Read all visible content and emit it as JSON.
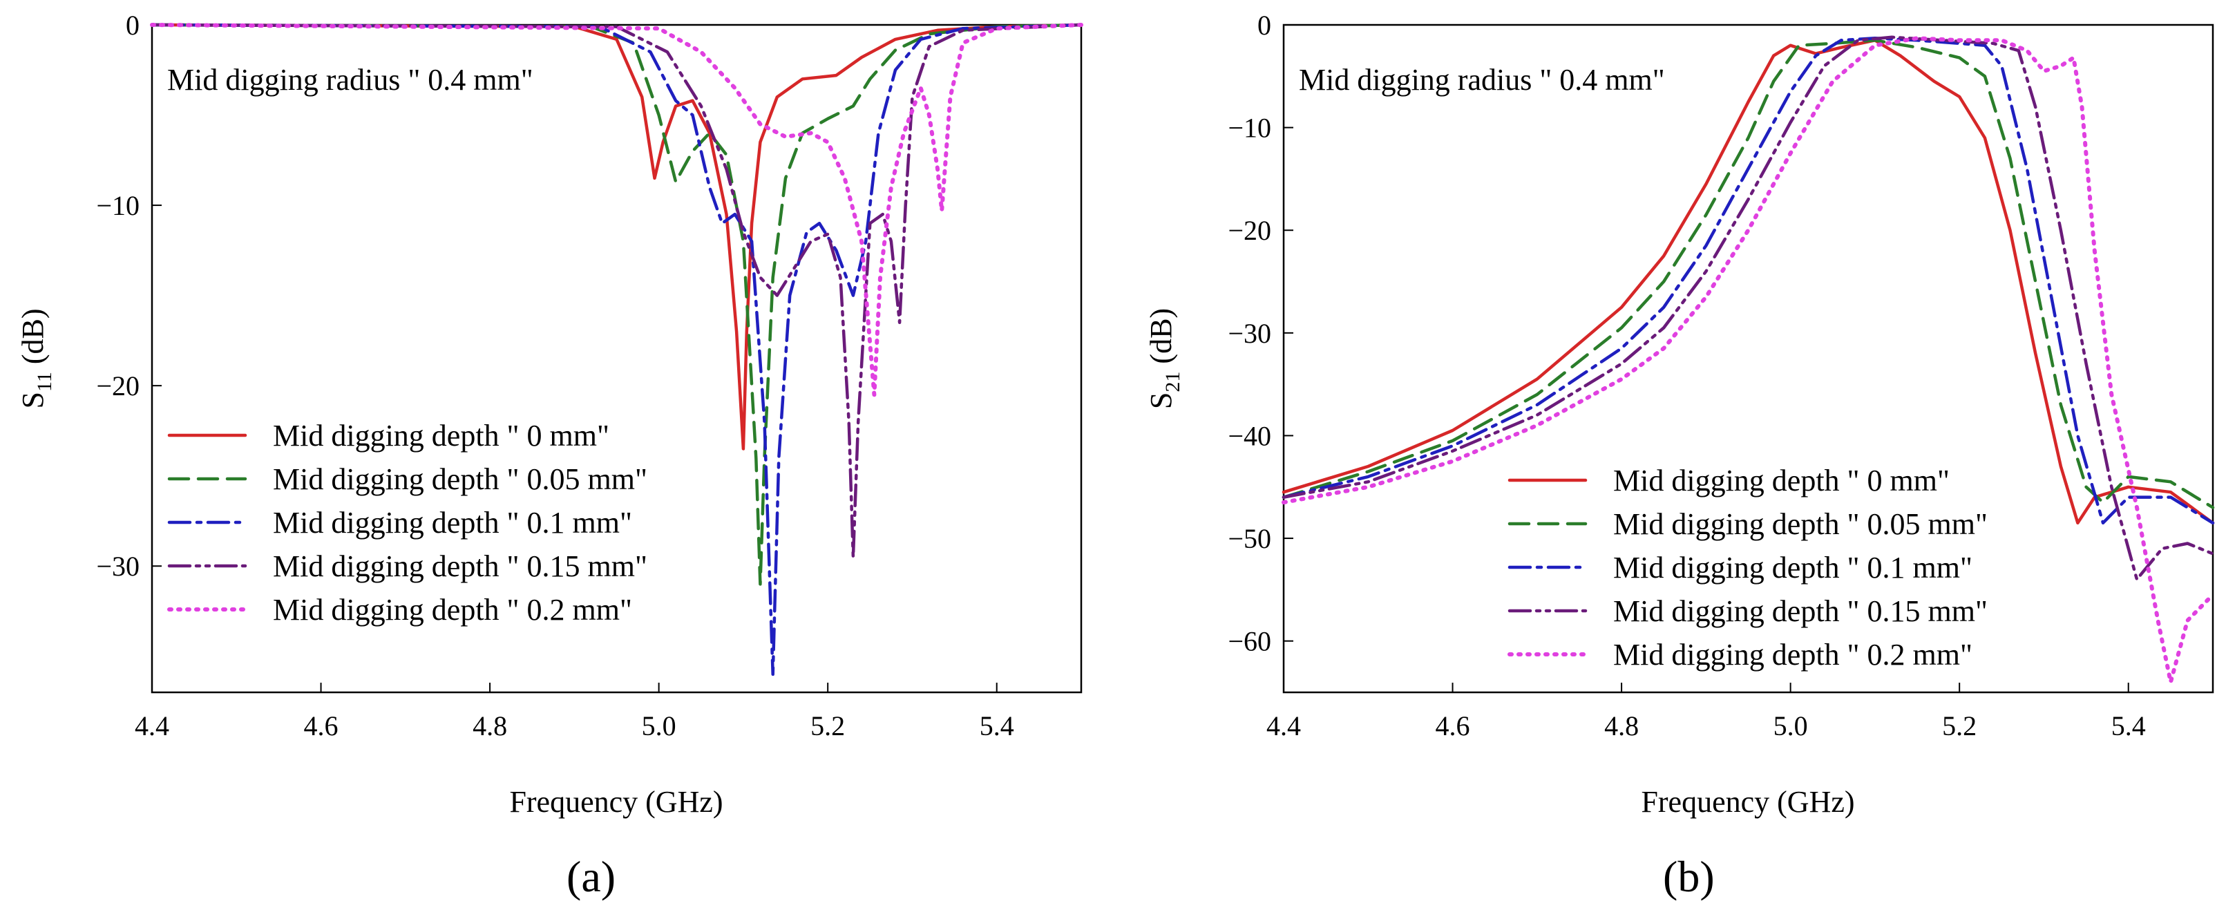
{
  "chart_data": [
    {
      "type": "line",
      "panel_label": "(a)",
      "xlabel": "Frequency (GHz)",
      "ylabel_main": "S",
      "ylabel_sub": "11",
      "ylabel_unit": " (dB)",
      "xlim": [
        4.4,
        5.5
      ],
      "ylim": [
        -37,
        0
      ],
      "xticks": [
        4.4,
        4.6,
        4.8,
        5.0,
        5.2,
        5.4
      ],
      "xtick_labels": [
        "4.4",
        "4.6",
        "4.8",
        "5.0",
        "5.2",
        "5.4"
      ],
      "yticks": [
        0,
        -10,
        -20,
        -30
      ],
      "ytick_labels": [
        "0",
        "−10",
        "−20",
        "−30"
      ],
      "annotation": "Mid digging radius \" 0.4 mm\"",
      "legend_position": "lower-left",
      "series": [
        {
          "name": "Mid digging depth \" 0 mm\"",
          "color": "#d62728",
          "dash": "solid",
          "points": [
            [
              4.4,
              0
            ],
            [
              4.9,
              -0.1
            ],
            [
              4.95,
              -0.8
            ],
            [
              4.98,
              -4
            ],
            [
              4.995,
              -8.5
            ],
            [
              5.005,
              -6.5
            ],
            [
              5.02,
              -4.5
            ],
            [
              5.04,
              -4.2
            ],
            [
              5.06,
              -6
            ],
            [
              5.08,
              -10.5
            ],
            [
              5.092,
              -17
            ],
            [
              5.1,
              -23.5
            ],
            [
              5.104,
              -17
            ],
            [
              5.11,
              -11
            ],
            [
              5.12,
              -6.5
            ],
            [
              5.14,
              -4
            ],
            [
              5.17,
              -3
            ],
            [
              5.21,
              -2.8
            ],
            [
              5.24,
              -1.8
            ],
            [
              5.28,
              -0.8
            ],
            [
              5.33,
              -0.3
            ],
            [
              5.4,
              -0.1
            ],
            [
              5.5,
              0
            ]
          ]
        },
        {
          "name": "Mid digging depth \" 0.05 mm\"",
          "color": "#2a7d2a",
          "dash": "dashed",
          "points": [
            [
              4.4,
              0
            ],
            [
              4.92,
              -0.1
            ],
            [
              4.97,
              -1
            ],
            [
              5.0,
              -5
            ],
            [
              5.02,
              -8.7
            ],
            [
              5.04,
              -7
            ],
            [
              5.06,
              -6
            ],
            [
              5.08,
              -7.2
            ],
            [
              5.1,
              -12
            ],
            [
              5.115,
              -24
            ],
            [
              5.12,
              -31
            ],
            [
              5.125,
              -24
            ],
            [
              5.135,
              -14
            ],
            [
              5.15,
              -8.5
            ],
            [
              5.17,
              -6
            ],
            [
              5.2,
              -5.2
            ],
            [
              5.23,
              -4.5
            ],
            [
              5.25,
              -3
            ],
            [
              5.28,
              -1.4
            ],
            [
              5.32,
              -0.5
            ],
            [
              5.4,
              -0.1
            ],
            [
              5.5,
              0
            ]
          ]
        },
        {
          "name": "Mid digging depth \" 0.1 mm\"",
          "color": "#1f1fbf",
          "dash": "dashdot",
          "points": [
            [
              4.4,
              0
            ],
            [
              4.93,
              -0.1
            ],
            [
              4.99,
              -1.5
            ],
            [
              5.02,
              -4.2
            ],
            [
              5.04,
              -5
            ],
            [
              5.06,
              -9
            ],
            [
              5.075,
              -11
            ],
            [
              5.09,
              -10.5
            ],
            [
              5.11,
              -12
            ],
            [
              5.125,
              -22
            ],
            [
              5.135,
              -36
            ],
            [
              5.142,
              -24
            ],
            [
              5.155,
              -15
            ],
            [
              5.175,
              -11.5
            ],
            [
              5.19,
              -11
            ],
            [
              5.21,
              -12.5
            ],
            [
              5.23,
              -15
            ],
            [
              5.245,
              -12
            ],
            [
              5.26,
              -6
            ],
            [
              5.28,
              -2.5
            ],
            [
              5.31,
              -0.8
            ],
            [
              5.36,
              -0.2
            ],
            [
              5.5,
              0
            ]
          ]
        },
        {
          "name": "Mid digging depth \" 0.15 mm\"",
          "color": "#6a1b7a",
          "dash": "dashdotdot",
          "points": [
            [
              4.4,
              0
            ],
            [
              4.95,
              -0.1
            ],
            [
              5.01,
              -1.5
            ],
            [
              5.05,
              -4.5
            ],
            [
              5.08,
              -8
            ],
            [
              5.1,
              -11.5
            ],
            [
              5.12,
              -14
            ],
            [
              5.14,
              -15
            ],
            [
              5.16,
              -13.5
            ],
            [
              5.18,
              -12
            ],
            [
              5.2,
              -11.6
            ],
            [
              5.215,
              -14
            ],
            [
              5.225,
              -22
            ],
            [
              5.23,
              -29.5
            ],
            [
              5.236,
              -22
            ],
            [
              5.25,
              -11
            ],
            [
              5.265,
              -10.5
            ],
            [
              5.275,
              -12
            ],
            [
              5.285,
              -16.5
            ],
            [
              5.292,
              -10
            ],
            [
              5.3,
              -4
            ],
            [
              5.32,
              -1.2
            ],
            [
              5.36,
              -0.3
            ],
            [
              5.5,
              0
            ]
          ]
        },
        {
          "name": "Mid digging depth \" 0.2 mm\"",
          "color": "#e040e0",
          "dash": "dotted",
          "points": [
            [
              4.4,
              0
            ],
            [
              5.0,
              -0.2
            ],
            [
              5.05,
              -1.5
            ],
            [
              5.09,
              -3.5
            ],
            [
              5.12,
              -5.5
            ],
            [
              5.15,
              -6.2
            ],
            [
              5.18,
              -6
            ],
            [
              5.2,
              -6.5
            ],
            [
              5.22,
              -8.5
            ],
            [
              5.24,
              -12
            ],
            [
              5.255,
              -20.5
            ],
            [
              5.262,
              -14
            ],
            [
              5.275,
              -9
            ],
            [
              5.29,
              -6
            ],
            [
              5.31,
              -3.5
            ],
            [
              5.32,
              -5
            ],
            [
              5.33,
              -8
            ],
            [
              5.335,
              -10.3
            ],
            [
              5.345,
              -4
            ],
            [
              5.36,
              -1
            ],
            [
              5.4,
              -0.2
            ],
            [
              5.5,
              0
            ]
          ]
        }
      ]
    },
    {
      "type": "line",
      "panel_label": "(b)",
      "xlabel": "Frequency (GHz)",
      "ylabel_main": "S",
      "ylabel_sub": "21",
      "ylabel_unit": " (dB)",
      "xlim": [
        4.4,
        5.5
      ],
      "ylim": [
        -65,
        0
      ],
      "xticks": [
        4.4,
        4.6,
        4.8,
        5.0,
        5.2,
        5.4
      ],
      "xtick_labels": [
        "4.4",
        "4.6",
        "4.8",
        "5.0",
        "5.2",
        "5.4"
      ],
      "yticks": [
        0,
        -10,
        -20,
        -30,
        -40,
        -50,
        -60
      ],
      "ytick_labels": [
        "0",
        "−10",
        "−20",
        "−30",
        "−40",
        "−50",
        "−60"
      ],
      "annotation": "Mid digging radius \" 0.4 mm\"",
      "legend_position": "lower-right",
      "series": [
        {
          "name": "Mid digging depth \" 0 mm\"",
          "color": "#d62728",
          "dash": "solid",
          "points": [
            [
              4.4,
              -45.5
            ],
            [
              4.5,
              -43
            ],
            [
              4.6,
              -39.5
            ],
            [
              4.7,
              -34.5
            ],
            [
              4.8,
              -27.5
            ],
            [
              4.85,
              -22.5
            ],
            [
              4.9,
              -15.5
            ],
            [
              4.95,
              -7.5
            ],
            [
              4.98,
              -3
            ],
            [
              5.0,
              -2
            ],
            [
              5.03,
              -2.8
            ],
            [
              5.06,
              -2.2
            ],
            [
              5.1,
              -1.5
            ],
            [
              5.13,
              -3
            ],
            [
              5.17,
              -5.5
            ],
            [
              5.2,
              -7
            ],
            [
              5.23,
              -11
            ],
            [
              5.26,
              -20
            ],
            [
              5.29,
              -32
            ],
            [
              5.32,
              -43
            ],
            [
              5.34,
              -48.5
            ],
            [
              5.36,
              -46
            ],
            [
              5.4,
              -45
            ],
            [
              5.45,
              -45.5
            ],
            [
              5.5,
              -48.5
            ]
          ]
        },
        {
          "name": "Mid digging depth \" 0.05 mm\"",
          "color": "#2a7d2a",
          "dash": "dashed",
          "points": [
            [
              4.4,
              -46
            ],
            [
              4.5,
              -43.5
            ],
            [
              4.6,
              -40.5
            ],
            [
              4.7,
              -36
            ],
            [
              4.8,
              -29.5
            ],
            [
              4.85,
              -25
            ],
            [
              4.9,
              -18.5
            ],
            [
              4.95,
              -11
            ],
            [
              4.98,
              -5.5
            ],
            [
              5.01,
              -2
            ],
            [
              5.05,
              -1.8
            ],
            [
              5.1,
              -1.5
            ],
            [
              5.15,
              -2.2
            ],
            [
              5.2,
              -3.2
            ],
            [
              5.23,
              -5
            ],
            [
              5.26,
              -13
            ],
            [
              5.29,
              -25
            ],
            [
              5.32,
              -37
            ],
            [
              5.35,
              -45
            ],
            [
              5.37,
              -46.5
            ],
            [
              5.4,
              -44
            ],
            [
              5.45,
              -44.5
            ],
            [
              5.5,
              -47
            ]
          ]
        },
        {
          "name": "Mid digging depth \" 0.1 mm\"",
          "color": "#1f1fbf",
          "dash": "dashdot",
          "points": [
            [
              4.4,
              -46
            ],
            [
              4.5,
              -44
            ],
            [
              4.6,
              -41
            ],
            [
              4.7,
              -37
            ],
            [
              4.8,
              -31.5
            ],
            [
              4.85,
              -27.5
            ],
            [
              4.9,
              -21.5
            ],
            [
              4.95,
              -14
            ],
            [
              5.0,
              -6.5
            ],
            [
              5.03,
              -3
            ],
            [
              5.06,
              -1.5
            ],
            [
              5.1,
              -1.3
            ],
            [
              5.15,
              -1.5
            ],
            [
              5.2,
              -1.8
            ],
            [
              5.23,
              -2
            ],
            [
              5.25,
              -4
            ],
            [
              5.28,
              -14
            ],
            [
              5.31,
              -27
            ],
            [
              5.34,
              -40
            ],
            [
              5.37,
              -48.5
            ],
            [
              5.4,
              -46
            ],
            [
              5.45,
              -46
            ],
            [
              5.5,
              -48.5
            ]
          ]
        },
        {
          "name": "Mid digging depth \" 0.15 mm\"",
          "color": "#6a1b7a",
          "dash": "dashdotdot",
          "points": [
            [
              4.4,
              -46
            ],
            [
              4.5,
              -44.5
            ],
            [
              4.6,
              -41.5
            ],
            [
              4.7,
              -38
            ],
            [
              4.8,
              -33
            ],
            [
              4.85,
              -29.5
            ],
            [
              4.9,
              -24
            ],
            [
              4.95,
              -17
            ],
            [
              5.0,
              -9.5
            ],
            [
              5.04,
              -4
            ],
            [
              5.08,
              -1.5
            ],
            [
              5.12,
              -1.2
            ],
            [
              5.18,
              -1.5
            ],
            [
              5.24,
              -1.8
            ],
            [
              5.27,
              -2.5
            ],
            [
              5.29,
              -8
            ],
            [
              5.32,
              -20
            ],
            [
              5.35,
              -33
            ],
            [
              5.38,
              -45
            ],
            [
              5.41,
              -54
            ],
            [
              5.44,
              -51
            ],
            [
              5.47,
              -50.5
            ],
            [
              5.5,
              -51.5
            ]
          ]
        },
        {
          "name": "Mid digging depth \" 0.2 mm\"",
          "color": "#e040e0",
          "dash": "dotted",
          "points": [
            [
              4.4,
              -46.5
            ],
            [
              4.5,
              -45
            ],
            [
              4.6,
              -42.5
            ],
            [
              4.7,
              -39
            ],
            [
              4.8,
              -34.5
            ],
            [
              4.85,
              -31.5
            ],
            [
              4.9,
              -26.5
            ],
            [
              4.95,
              -20
            ],
            [
              5.0,
              -12.5
            ],
            [
              5.05,
              -5.5
            ],
            [
              5.1,
              -2
            ],
            [
              5.15,
              -1.3
            ],
            [
              5.2,
              -1.5
            ],
            [
              5.25,
              -1.5
            ],
            [
              5.28,
              -2.5
            ],
            [
              5.3,
              -4.5
            ],
            [
              5.32,
              -4
            ],
            [
              5.335,
              -3.2
            ],
            [
              5.345,
              -8
            ],
            [
              5.36,
              -22
            ],
            [
              5.38,
              -36
            ],
            [
              5.41,
              -47
            ],
            [
              5.435,
              -58
            ],
            [
              5.45,
              -64
            ],
            [
              5.47,
              -58
            ],
            [
              5.5,
              -55.5
            ]
          ]
        }
      ]
    }
  ]
}
